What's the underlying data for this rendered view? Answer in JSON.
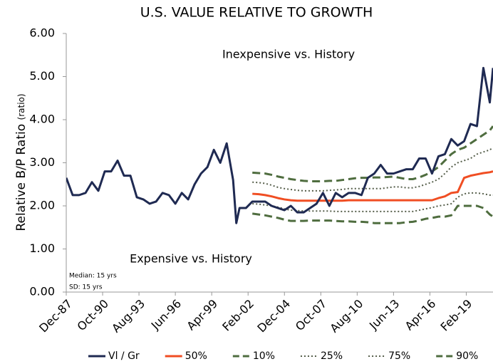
{
  "chart_data": {
    "type": "line",
    "title": "U.S. VALUE RELATIVE TO GROWTH",
    "y_label": "Relative B/P Ratio",
    "y_label_unit": "(ratio)",
    "annotations": [
      "Inexpensive vs. History",
      "Expensive vs. History",
      "Median: 15 yrs",
      "SD: 15 yrs"
    ],
    "x": [
      "1987-12",
      "1988-06",
      "1988-12",
      "1989-06",
      "1989-12",
      "1990-06",
      "1990-12",
      "1991-06",
      "1991-12",
      "1992-06",
      "1992-12",
      "1993-06",
      "1993-12",
      "1994-06",
      "1994-12",
      "1995-06",
      "1995-12",
      "1996-06",
      "1996-12",
      "1997-06",
      "1997-12",
      "1998-06",
      "1998-12",
      "1999-06",
      "1999-12",
      "2000-06",
      "2000-12",
      "2001-03",
      "2001-06",
      "2001-12",
      "2002-06",
      "2002-12",
      "2003-06",
      "2003-12",
      "2004-06",
      "2004-12",
      "2005-06",
      "2005-12",
      "2006-06",
      "2006-12",
      "2007-06",
      "2007-12",
      "2008-06",
      "2008-12",
      "2009-06",
      "2009-12",
      "2010-06",
      "2010-12",
      "2011-06",
      "2011-12",
      "2012-06",
      "2012-12",
      "2013-06",
      "2013-12",
      "2014-06",
      "2014-12",
      "2015-06",
      "2015-12",
      "2016-06",
      "2016-12",
      "2017-06",
      "2017-12",
      "2018-06",
      "2018-12",
      "2019-06",
      "2019-12",
      "2020-06",
      "2020-12",
      "2021-03"
    ],
    "xlim": [
      "1987-12",
      "2021-03"
    ],
    "xticks": [
      {
        "value": "1987-12",
        "label": "Dec-87"
      },
      {
        "value": "1990-10",
        "label": "Oct-90"
      },
      {
        "value": "1993-08",
        "label": "Aug-93"
      },
      {
        "value": "1996-06",
        "label": "Jun-96"
      },
      {
        "value": "1999-04",
        "label": "Apr-99"
      },
      {
        "value": "2002-02",
        "label": "Feb-02"
      },
      {
        "value": "2004-12",
        "label": "Dec-04"
      },
      {
        "value": "2007-10",
        "label": "Oct-07"
      },
      {
        "value": "2010-08",
        "label": "Aug-10"
      },
      {
        "value": "2013-06",
        "label": "Jun-13"
      },
      {
        "value": "2016-04",
        "label": "Apr-16"
      },
      {
        "value": "2019-02",
        "label": "Feb-19"
      }
    ],
    "ylim": [
      0,
      6
    ],
    "yticks": [
      {
        "value": 0,
        "label": "0.00"
      },
      {
        "value": 1,
        "label": "1.00"
      },
      {
        "value": 2,
        "label": "2.00"
      },
      {
        "value": 3,
        "label": "3.00"
      },
      {
        "value": 4,
        "label": "4.00"
      },
      {
        "value": 5,
        "label": "5.00"
      },
      {
        "value": 6,
        "label": "6.00"
      }
    ],
    "grid": false,
    "legend": "bottom",
    "series": [
      {
        "name": "Vl / Gr",
        "color": "#1f2a52",
        "style": "solid",
        "values": [
          2.65,
          2.25,
          2.25,
          2.3,
          2.55,
          2.35,
          2.8,
          2.8,
          3.05,
          2.7,
          2.7,
          2.2,
          2.15,
          2.05,
          2.1,
          2.3,
          2.25,
          2.05,
          2.3,
          2.15,
          2.5,
          2.75,
          2.9,
          3.3,
          3.0,
          3.45,
          2.6,
          1.6,
          1.95,
          1.95,
          2.1,
          2.1,
          2.1,
          2.0,
          1.95,
          1.9,
          2.0,
          1.85,
          1.85,
          1.95,
          2.05,
          2.3,
          2.0,
          2.3,
          2.2,
          2.3,
          2.3,
          2.25,
          2.65,
          2.75,
          2.95,
          2.75,
          2.75,
          2.8,
          2.85,
          2.85,
          3.1,
          3.1,
          2.75,
          3.15,
          3.2,
          3.55,
          3.4,
          3.5,
          3.9,
          3.85,
          5.2,
          4.4,
          5.2
        ]
      },
      {
        "name": "50%",
        "color": "#f04e23",
        "style": "solid",
        "values": [
          null,
          null,
          null,
          null,
          null,
          null,
          null,
          null,
          null,
          null,
          null,
          null,
          null,
          null,
          null,
          null,
          null,
          null,
          null,
          null,
          null,
          null,
          null,
          null,
          null,
          null,
          null,
          null,
          null,
          null,
          2.28,
          2.27,
          2.25,
          2.22,
          2.18,
          2.15,
          2.13,
          2.12,
          2.12,
          2.12,
          2.12,
          2.12,
          2.12,
          2.12,
          2.12,
          2.13,
          2.13,
          2.13,
          2.13,
          2.13,
          2.13,
          2.13,
          2.13,
          2.13,
          2.13,
          2.13,
          2.13,
          2.13,
          2.13,
          2.18,
          2.22,
          2.3,
          2.32,
          2.65,
          2.7,
          2.73,
          2.76,
          2.78,
          2.8
        ]
      },
      {
        "name": "10%",
        "color": "#4f6d3f",
        "style": "dashed",
        "values": [
          null,
          null,
          null,
          null,
          null,
          null,
          null,
          null,
          null,
          null,
          null,
          null,
          null,
          null,
          null,
          null,
          null,
          null,
          null,
          null,
          null,
          null,
          null,
          null,
          null,
          null,
          null,
          null,
          null,
          null,
          1.82,
          1.8,
          1.78,
          1.75,
          1.72,
          1.68,
          1.65,
          1.65,
          1.65,
          1.66,
          1.66,
          1.66,
          1.66,
          1.65,
          1.64,
          1.64,
          1.63,
          1.63,
          1.62,
          1.6,
          1.6,
          1.6,
          1.6,
          1.6,
          1.62,
          1.63,
          1.66,
          1.7,
          1.72,
          1.75,
          1.75,
          1.78,
          2.0,
          2.0,
          2.0,
          2.0,
          1.95,
          1.8,
          1.75
        ]
      },
      {
        "name": "25%",
        "color": "#555e4a",
        "style": "dotted",
        "values": [
          null,
          null,
          null,
          null,
          null,
          null,
          null,
          null,
          null,
          null,
          null,
          null,
          null,
          null,
          null,
          null,
          null,
          null,
          null,
          null,
          null,
          null,
          null,
          null,
          null,
          null,
          null,
          null,
          null,
          null,
          2.05,
          2.04,
          2.02,
          2.0,
          1.97,
          1.93,
          1.9,
          1.89,
          1.88,
          1.88,
          1.88,
          1.88,
          1.88,
          1.87,
          1.87,
          1.87,
          1.87,
          1.87,
          1.87,
          1.87,
          1.87,
          1.87,
          1.87,
          1.87,
          1.87,
          1.87,
          1.9,
          1.93,
          1.96,
          2.0,
          2.02,
          2.05,
          2.2,
          2.28,
          2.3,
          2.3,
          2.28,
          2.25,
          2.25
        ]
      },
      {
        "name": "75%",
        "color": "#555e4a",
        "style": "dotted",
        "values": [
          null,
          null,
          null,
          null,
          null,
          null,
          null,
          null,
          null,
          null,
          null,
          null,
          null,
          null,
          null,
          null,
          null,
          null,
          null,
          null,
          null,
          null,
          null,
          null,
          null,
          null,
          null,
          null,
          null,
          null,
          2.55,
          2.54,
          2.52,
          2.48,
          2.43,
          2.4,
          2.38,
          2.36,
          2.35,
          2.35,
          2.35,
          2.35,
          2.36,
          2.37,
          2.38,
          2.4,
          2.4,
          2.4,
          2.4,
          2.4,
          2.4,
          2.42,
          2.44,
          2.44,
          2.42,
          2.42,
          2.45,
          2.5,
          2.55,
          2.62,
          2.75,
          2.9,
          3.0,
          3.05,
          3.1,
          3.2,
          3.25,
          3.3,
          3.35
        ]
      },
      {
        "name": "90%",
        "color": "#4f6d3f",
        "style": "dashed",
        "values": [
          null,
          null,
          null,
          null,
          null,
          null,
          null,
          null,
          null,
          null,
          null,
          null,
          null,
          null,
          null,
          null,
          null,
          null,
          null,
          null,
          null,
          null,
          null,
          null,
          null,
          null,
          null,
          null,
          null,
          null,
          2.77,
          2.76,
          2.75,
          2.72,
          2.68,
          2.65,
          2.62,
          2.6,
          2.58,
          2.57,
          2.57,
          2.57,
          2.58,
          2.58,
          2.6,
          2.62,
          2.64,
          2.65,
          2.65,
          2.66,
          2.66,
          2.67,
          2.68,
          2.65,
          2.62,
          2.62,
          2.66,
          2.72,
          2.8,
          2.9,
          3.05,
          3.2,
          3.3,
          3.35,
          3.45,
          3.55,
          3.65,
          3.75,
          3.85
        ]
      }
    ]
  }
}
